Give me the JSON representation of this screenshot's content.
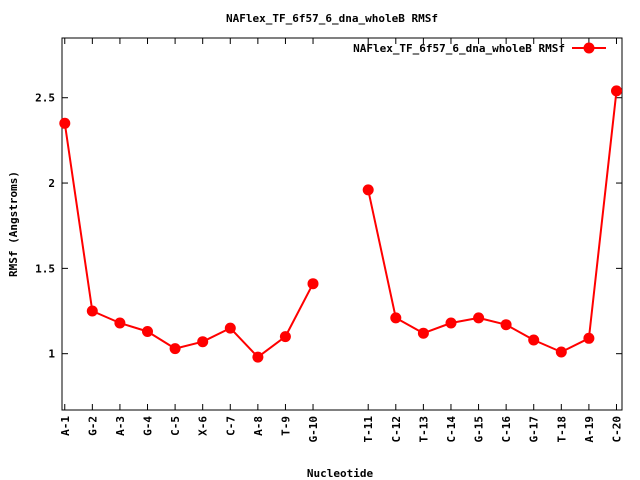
{
  "chart_data": {
    "type": "line",
    "title": "NAFlex_TF_6f57_6_dna_wholeB RMSf",
    "xlabel": "Nucleotide",
    "ylabel": "RMSf (Angstroms)",
    "ylim": [
      0.67,
      2.85
    ],
    "yticks": [
      1,
      1.5,
      2,
      2.5
    ],
    "ytick_labels": [
      "1",
      "1.5",
      "2",
      "2.5"
    ],
    "xlim": [
      0.9,
      21.2
    ],
    "grid": false,
    "legend_position": "top-right",
    "categories": [
      "A-1",
      "G-2",
      "A-3",
      "G-4",
      "C-5",
      "X-6",
      "C-7",
      "A-8",
      "T-9",
      "G-10",
      "T-11",
      "C-12",
      "T-13",
      "C-14",
      "G-15",
      "C-16",
      "G-17",
      "T-18",
      "A-19",
      "C-20"
    ],
    "x": [
      1,
      2,
      3,
      4,
      5,
      6,
      7,
      8,
      9,
      10,
      12,
      13,
      14,
      15,
      16,
      17,
      18,
      19,
      20,
      21
    ],
    "segments": [
      [
        0,
        9
      ],
      [
        10,
        19
      ]
    ],
    "series": [
      {
        "name": "NAFlex_TF_6f57_6_dna_wholeB RMSf",
        "color": "#ff0000",
        "values": [
          2.35,
          1.25,
          1.18,
          1.13,
          1.03,
          1.07,
          1.15,
          0.98,
          1.1,
          1.41,
          1.96,
          1.21,
          1.12,
          1.18,
          1.21,
          1.17,
          1.08,
          1.01,
          1.09,
          2.54
        ]
      }
    ]
  }
}
